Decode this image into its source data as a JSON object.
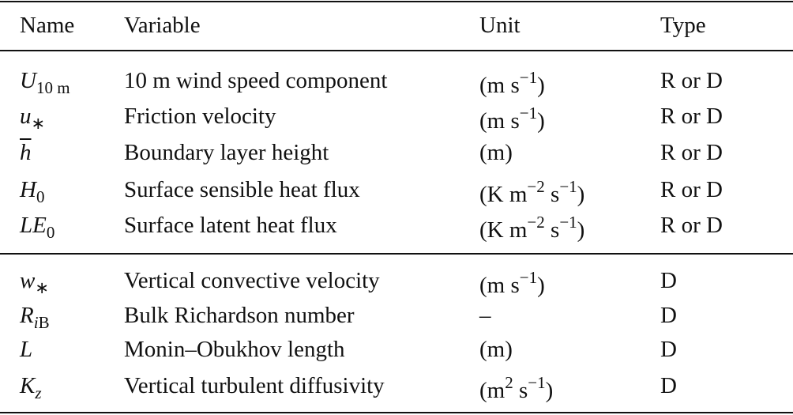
{
  "table": {
    "header": [
      "Name",
      "Variable",
      "Unit",
      "Type"
    ],
    "groups": [
      [
        [
          [
            {
              "text": "U",
              "style": "i"
            },
            {
              "text": "10 m",
              "style": "sub"
            }
          ],
          "10 m wind speed component",
          [
            {
              "text": "(m s"
            },
            {
              "text": "−1",
              "style": "sup"
            },
            {
              "text": ")"
            }
          ],
          "R or D"
        ],
        [
          [
            {
              "text": "u",
              "style": "i"
            },
            {
              "text": "∗",
              "style": "sub"
            }
          ],
          "Friction velocity",
          [
            {
              "text": "(m s"
            },
            {
              "text": "−1",
              "style": "sup"
            },
            {
              "text": ")"
            }
          ],
          "R or D"
        ],
        [
          [
            {
              "text": "h",
              "style": "i-over"
            }
          ],
          "Boundary layer height",
          [
            {
              "text": "(m)"
            }
          ],
          "R or D"
        ],
        [
          [
            {
              "text": "H",
              "style": "i"
            },
            {
              "text": "0",
              "style": "sub"
            }
          ],
          "Surface sensible heat flux",
          [
            {
              "text": "(K m"
            },
            {
              "text": "−2",
              "style": "sup"
            },
            {
              "text": " s"
            },
            {
              "text": "−1",
              "style": "sup"
            },
            {
              "text": ")"
            }
          ],
          "R or D"
        ],
        [
          [
            {
              "text": "LE",
              "style": "i"
            },
            {
              "text": "0",
              "style": "sub"
            }
          ],
          "Surface latent heat flux",
          [
            {
              "text": "(K m"
            },
            {
              "text": "−2",
              "style": "sup"
            },
            {
              "text": " s"
            },
            {
              "text": "−1",
              "style": "sup"
            },
            {
              "text": ")"
            }
          ],
          "R or D"
        ]
      ],
      [
        [
          [
            {
              "text": "w",
              "style": "i"
            },
            {
              "text": "∗",
              "style": "sub"
            }
          ],
          "Vertical convective velocity",
          [
            {
              "text": "(m s"
            },
            {
              "text": "−1",
              "style": "sup"
            },
            {
              "text": ")"
            }
          ],
          "D"
        ],
        [
          [
            {
              "text": "R",
              "style": "i"
            },
            {
              "text": "i",
              "style": "sub-i"
            },
            {
              "text": "B",
              "style": "sub"
            }
          ],
          "Bulk Richardson number",
          [
            {
              "text": "–"
            }
          ],
          "D"
        ],
        [
          [
            {
              "text": "L",
              "style": "i"
            }
          ],
          "Monin–Obukhov length",
          [
            {
              "text": "(m)"
            }
          ],
          "D"
        ],
        [
          [
            {
              "text": "K",
              "style": "i"
            },
            {
              "text": "z",
              "style": "sub-i"
            }
          ],
          "Vertical turbulent diffusivity",
          [
            {
              "text": "(m"
            },
            {
              "text": "2",
              "style": "sup"
            },
            {
              "text": " s"
            },
            {
              "text": "−1",
              "style": "sup"
            },
            {
              "text": ")"
            }
          ],
          "D"
        ]
      ]
    ]
  }
}
